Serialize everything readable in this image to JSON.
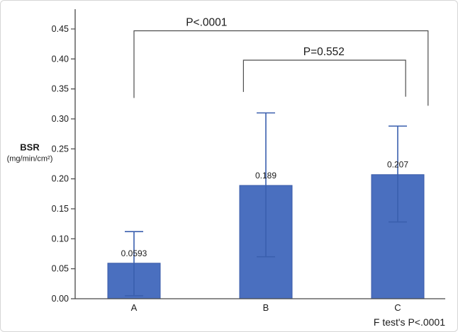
{
  "chart_data": {
    "type": "bar",
    "title": "",
    "categories": [
      "A",
      "B",
      "C"
    ],
    "values": [
      0.0593,
      0.189,
      0.207
    ],
    "value_labels": [
      "0.0593",
      "0.189",
      "0.207"
    ],
    "error_bars": [
      {
        "low": 0.005,
        "high": 0.112
      },
      {
        "low": 0.07,
        "high": 0.31
      },
      {
        "low": 0.128,
        "high": 0.288
      }
    ],
    "ylabel": "BSR",
    "ylabel_units": "(mg/min/cm²)",
    "xlabel": "",
    "ylim": [
      0,
      0.483
    ],
    "yticks": [
      0,
      0.05,
      0.1,
      0.15,
      0.2,
      0.25,
      0.3,
      0.35,
      0.4,
      0.45
    ],
    "ytick_labels": [
      "0.00",
      "0.05",
      "0.10",
      "0.15",
      "0.20",
      "0.25",
      "0.30",
      "0.35",
      "0.40",
      "0.45"
    ],
    "grid": false,
    "legend": "none",
    "bar_color": "#4a6fbf",
    "bar_edge_color": "#3a5ba8",
    "error_color": "#3a5fae",
    "axis_color": "#474747",
    "bracket_color": "#4d4d4d",
    "text_color": "#1a1a1a",
    "brackets": [
      {
        "label": "P<.0001",
        "x1": 0.0,
        "x2": 2.23,
        "y": 0.447,
        "y1_drop": 0.335,
        "y2_drop": 0.322,
        "label_x": 0.55
      },
      {
        "label": "P=0.552",
        "x1": 0.83,
        "x2": 2.06,
        "y": 0.398,
        "y1_drop": 0.345,
        "y2_drop": 0.337,
        "label_x": 1.44
      }
    ],
    "footnote": "F test's P<.0001"
  }
}
